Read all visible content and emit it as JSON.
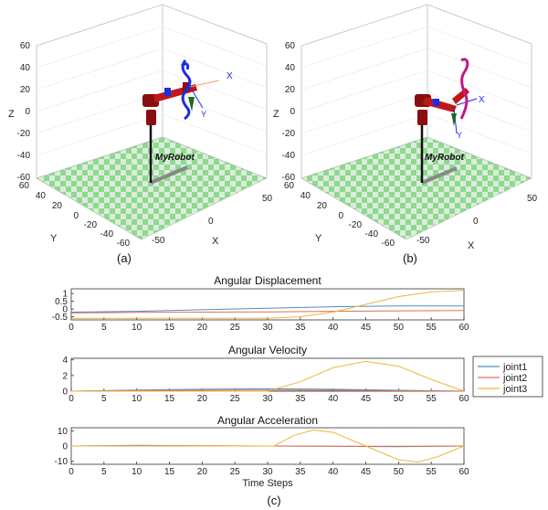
{
  "colors": {
    "joint1": "#4a90c8",
    "joint2": "#e0714a",
    "joint3": "#f0b63b"
  },
  "scenes": [
    {
      "caption": "(a)",
      "robot_label": "MyRobot",
      "z_ticks": [
        "60",
        "40",
        "20",
        "0",
        "-20",
        "-40",
        "-60"
      ],
      "y_ticks": [
        "60",
        "40",
        "20",
        "0",
        "-20",
        "-40",
        "-60"
      ],
      "x_ticks": [
        "-50",
        "0",
        "50"
      ],
      "zlabel": "Z",
      "ylabel": "Y",
      "xlabel": "X",
      "frame_labels": {
        "x": "X",
        "y": "Y"
      },
      "trajectory_color": "#1a2ee0"
    },
    {
      "caption": "(b)",
      "robot_label": "MyRobot",
      "z_ticks": [
        "60",
        "40",
        "20",
        "0",
        "-20",
        "-40",
        "-60"
      ],
      "y_ticks": [
        "60",
        "40",
        "20",
        "0",
        "-20",
        "-40",
        "-60"
      ],
      "x_ticks": [
        "-50",
        "0",
        "50"
      ],
      "zlabel": "Z",
      "ylabel": "Y",
      "xlabel": "X",
      "frame_labels": {
        "x": "X",
        "y": "Y"
      },
      "trajectory_color": "#c0188a"
    }
  ],
  "chart_data": [
    {
      "type": "line",
      "title": "Angular Displacement",
      "ylim": [
        -0.7,
        1.3
      ],
      "xlim": [
        0,
        60
      ],
      "y_ticks": [
        1,
        0.5,
        0,
        -0.5
      ],
      "y_tick_labels": [
        "1",
        "0.5",
        "0",
        "-0.5"
      ],
      "x_ticks": [
        0,
        5,
        10,
        15,
        20,
        25,
        30,
        35,
        40,
        45,
        50,
        55,
        60
      ],
      "series": [
        {
          "name": "joint1",
          "x": [
            0,
            10,
            20,
            30,
            40,
            50,
            60
          ],
          "values": [
            -0.2,
            -0.15,
            -0.05,
            0.05,
            0.15,
            0.2,
            0.2
          ]
        },
        {
          "name": "joint2",
          "x": [
            0,
            10,
            20,
            30,
            40,
            50,
            60
          ],
          "values": [
            -0.25,
            -0.22,
            -0.2,
            -0.18,
            -0.15,
            -0.12,
            -0.1
          ]
        },
        {
          "name": "joint3",
          "x": [
            0,
            30,
            35,
            40,
            45,
            50,
            55,
            60
          ],
          "values": [
            -0.6,
            -0.6,
            -0.5,
            -0.2,
            0.3,
            0.8,
            1.1,
            1.2
          ]
        }
      ]
    },
    {
      "type": "line",
      "title": "Angular Velocity",
      "ylim": [
        0,
        4.2
      ],
      "xlim": [
        0,
        60
      ],
      "y_ticks": [
        4,
        2,
        0
      ],
      "y_tick_labels": [
        "4",
        "2",
        "0"
      ],
      "x_ticks": [
        0,
        5,
        10,
        15,
        20,
        25,
        30,
        35,
        40,
        45,
        50,
        55,
        60
      ],
      "legend": [
        "joint1",
        "joint2",
        "joint3"
      ],
      "series": [
        {
          "name": "joint1",
          "x": [
            0,
            10,
            20,
            30,
            40,
            50,
            60
          ],
          "values": [
            0,
            0.15,
            0.25,
            0.3,
            0.25,
            0.12,
            0
          ]
        },
        {
          "name": "joint2",
          "x": [
            0,
            10,
            20,
            30,
            40,
            50,
            60
          ],
          "values": [
            0,
            0.08,
            0.12,
            0.15,
            0.12,
            0.06,
            0
          ]
        },
        {
          "name": "joint3",
          "x": [
            0,
            30,
            35,
            40,
            45,
            50,
            55,
            60
          ],
          "values": [
            0,
            0,
            1.2,
            3.0,
            3.8,
            3.2,
            1.5,
            0
          ]
        }
      ]
    },
    {
      "type": "line",
      "title": "Angular Acceleration",
      "xlabel": "Time Steps",
      "ylim": [
        -12,
        12
      ],
      "xlim": [
        0,
        60
      ],
      "y_ticks": [
        10,
        0,
        -10
      ],
      "y_tick_labels": [
        "10",
        "0",
        "-10"
      ],
      "x_ticks": [
        0,
        5,
        10,
        15,
        20,
        25,
        30,
        35,
        40,
        45,
        50,
        55,
        60
      ],
      "series": [
        {
          "name": "joint1",
          "x": [
            0,
            10,
            20,
            30,
            40,
            50,
            60
          ],
          "values": [
            0,
            0.4,
            0.2,
            0,
            -0.2,
            -0.4,
            0
          ]
        },
        {
          "name": "joint2",
          "x": [
            0,
            10,
            20,
            30,
            40,
            50,
            60
          ],
          "values": [
            0,
            0.2,
            0.1,
            0,
            -0.1,
            -0.2,
            0
          ]
        },
        {
          "name": "joint3",
          "x": [
            0,
            31,
            34,
            37,
            40,
            45,
            50,
            53,
            56,
            60
          ],
          "values": [
            0,
            0,
            7,
            10.5,
            9,
            0,
            -9,
            -10.5,
            -7,
            0
          ]
        }
      ]
    }
  ],
  "legend": [
    "joint1",
    "joint2",
    "joint3"
  ],
  "figure_caption": "(c)"
}
